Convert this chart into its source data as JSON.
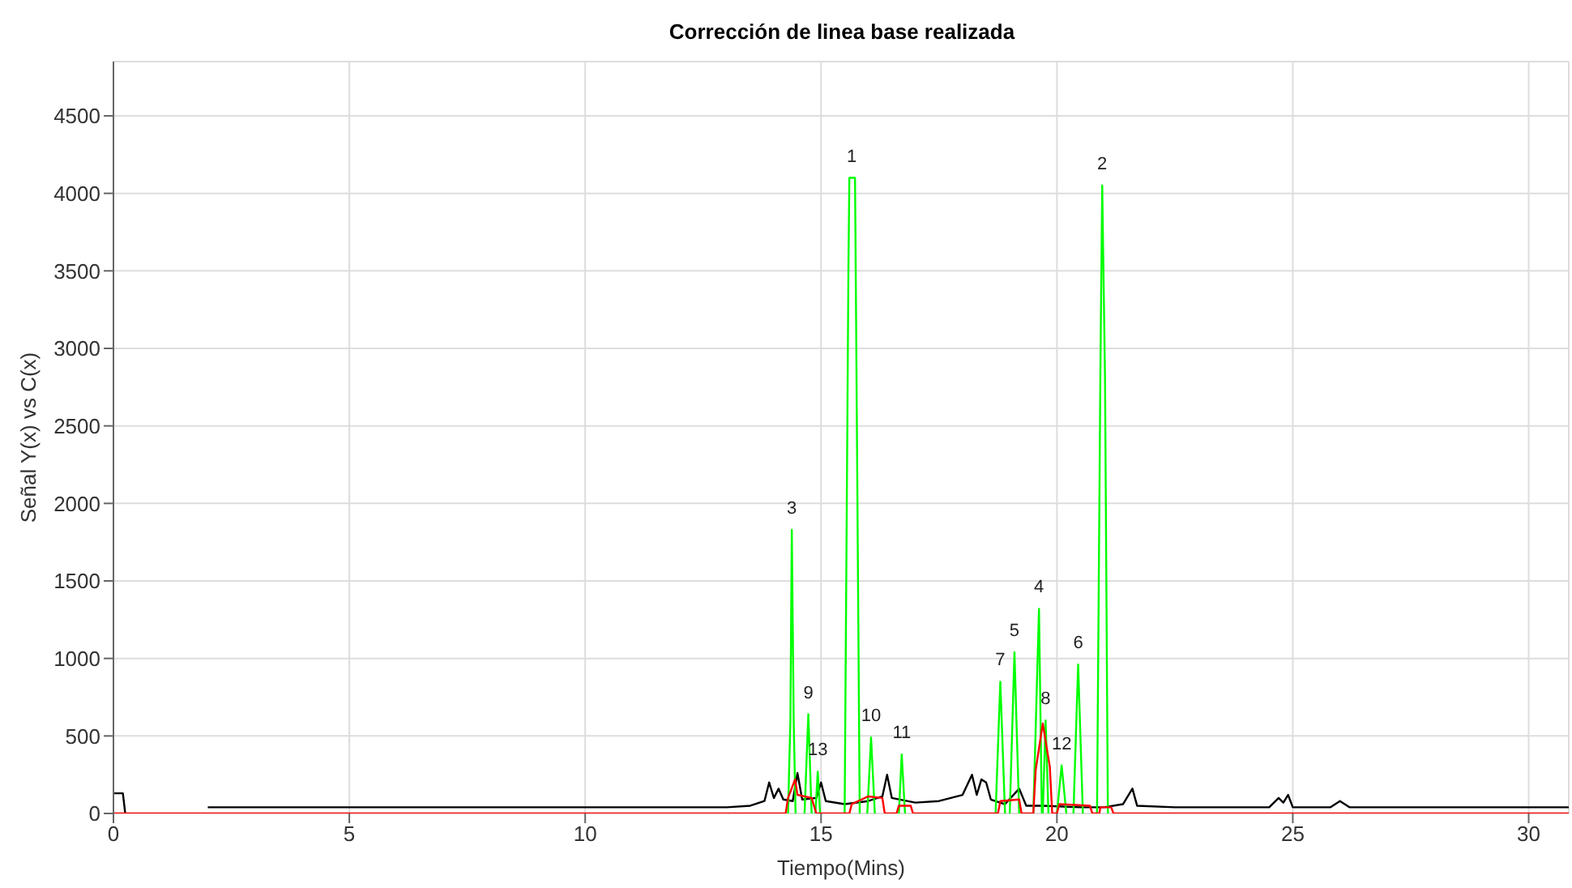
{
  "chart_data": {
    "type": "line",
    "title": "Corrección de linea base realizada",
    "xlabel": "Tiempo(Mins)",
    "ylabel": "Señal Y(x) vs C(x)",
    "xlim": [
      0,
      30.85
    ],
    "xticks": [
      0,
      5,
      10,
      15,
      20,
      25,
      30
    ],
    "ylim": [
      0,
      4850
    ],
    "yticks": [
      0,
      500,
      1000,
      1500,
      2000,
      2500,
      3000,
      3500,
      4000,
      4500
    ],
    "grid": true,
    "legend": false,
    "marker": "none",
    "line_style": "solid",
    "series": [
      {
        "color": "#000000",
        "x": [
          0,
          0.2,
          0.25,
          1.95,
          2.0,
          2.05,
          12.9,
          13.0,
          13.5,
          13.8,
          13.9,
          14.0,
          14.1,
          14.2,
          14.4,
          14.5,
          14.6,
          14.9,
          15.0,
          15.1,
          15.5,
          16.0,
          16.3,
          16.4,
          16.5,
          17.0,
          17.5,
          18.0,
          18.2,
          18.3,
          18.4,
          18.5,
          18.6,
          18.9,
          19.2,
          19.35,
          19.7,
          20.5,
          21.0,
          21.4,
          21.6,
          21.7,
          22.5,
          24.5,
          24.7,
          24.8,
          24.9,
          25.0,
          25.8,
          26.0,
          26.2,
          30.85
        ],
        "values": [
          130,
          130,
          0,
          null,
          40,
          40,
          40,
          40,
          50,
          80,
          200,
          100,
          160,
          90,
          80,
          260,
          90,
          100,
          200,
          80,
          60,
          80,
          110,
          250,
          100,
          70,
          80,
          120,
          250,
          120,
          220,
          200,
          90,
          60,
          160,
          50,
          50,
          40,
          40,
          60,
          160,
          50,
          40,
          40,
          100,
          70,
          120,
          40,
          40,
          80,
          40,
          40
        ]
      },
      {
        "color": "#00ff00",
        "x": [
          14.3,
          14.35,
          14.38,
          14.42,
          14.46,
          14.5,
          14.65,
          14.73,
          14.8,
          14.84,
          14.88,
          14.93,
          14.98,
          15.2,
          15.5,
          15.58,
          15.6,
          15.72,
          15.75,
          15.82,
          15.9,
          15.98,
          16.06,
          16.14,
          16.4,
          16.65,
          16.71,
          16.78,
          17.5,
          18.7,
          18.8,
          18.9,
          18.95,
          19.0,
          19.1,
          19.2,
          19.3,
          19.5,
          19.62,
          19.68,
          19.69,
          19.7,
          19.76,
          19.82,
          19.9,
          20.0,
          20.1,
          20.2,
          20.3,
          20.35,
          20.45,
          20.55,
          20.7,
          20.85,
          20.92,
          20.96,
          21.02,
          21.08
        ],
        "values": [
          0,
          600,
          1830,
          600,
          0,
          null,
          0,
          640,
          0,
          null,
          0,
          270,
          0,
          null,
          0,
          3500,
          4100,
          4100,
          2900,
          0,
          null,
          0,
          490,
          0,
          null,
          0,
          380,
          0,
          null,
          0,
          850,
          0,
          null,
          0,
          1040,
          0,
          null,
          0,
          1320,
          0,
          null,
          0,
          600,
          0,
          null,
          0,
          310,
          0,
          null,
          0,
          960,
          0,
          null,
          0,
          2800,
          4050,
          2800,
          0
        ]
      },
      {
        "color": "#ff0000",
        "x": [
          0,
          14.25,
          14.3,
          14.45,
          14.5,
          14.8,
          14.9,
          15.6,
          15.65,
          16.0,
          16.3,
          16.35,
          16.6,
          16.65,
          16.9,
          16.95,
          18.75,
          18.8,
          19.2,
          19.25,
          19.5,
          19.55,
          19.7,
          19.85,
          19.9,
          20.0,
          20.05,
          20.7,
          20.75,
          20.9,
          20.92,
          21.15,
          21.2,
          30.85
        ],
        "values": [
          0,
          0,
          100,
          220,
          120,
          100,
          0,
          0,
          60,
          110,
          100,
          0,
          0,
          50,
          50,
          0,
          0,
          80,
          90,
          0,
          0,
          280,
          580,
          300,
          0,
          0,
          60,
          50,
          0,
          0,
          40,
          40,
          0,
          0
        ]
      }
    ],
    "annotations": [
      {
        "text": "1",
        "x": 15.65,
        "y": 4100
      },
      {
        "text": "2",
        "x": 20.96,
        "y": 4050
      },
      {
        "text": "3",
        "x": 14.38,
        "y": 1830
      },
      {
        "text": "4",
        "x": 19.62,
        "y": 1320
      },
      {
        "text": "5",
        "x": 19.1,
        "y": 1040
      },
      {
        "text": "6",
        "x": 20.45,
        "y": 960
      },
      {
        "text": "7",
        "x": 18.8,
        "y": 850
      },
      {
        "text": "8",
        "x": 19.76,
        "y": 600
      },
      {
        "text": "9",
        "x": 14.73,
        "y": 640
      },
      {
        "text": "10",
        "x": 16.06,
        "y": 490
      },
      {
        "text": "11",
        "x": 16.71,
        "y": 380
      },
      {
        "text": "12",
        "x": 20.1,
        "y": 310
      },
      {
        "text": "13",
        "x": 14.93,
        "y": 270
      }
    ]
  }
}
